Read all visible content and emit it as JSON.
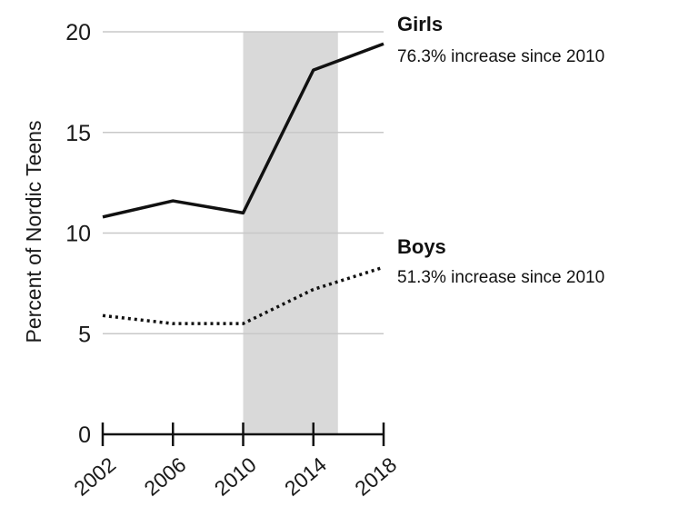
{
  "chart_data": {
    "type": "line",
    "ylabel": "Percent of Nordic Teens",
    "xlabel": "",
    "x": [
      2002,
      2006,
      2010,
      2014,
      2018
    ],
    "xticks": [
      "2002",
      "2006",
      "2010",
      "2014",
      "2018"
    ],
    "yticks": [
      "0",
      "5",
      "10",
      "15",
      "20"
    ],
    "ylim": [
      0,
      20
    ],
    "xlim": [
      2002,
      2018
    ],
    "grid": true,
    "highlight_band": [
      2010,
      2015.4
    ],
    "series": [
      {
        "name": "Girls",
        "style": "solid",
        "annotation": "76.3% increase since 2010",
        "values": [
          10.8,
          11.6,
          11.0,
          18.1,
          19.4
        ]
      },
      {
        "name": "Boys",
        "style": "dotted",
        "annotation": "51.3% increase since 2010",
        "values": [
          5.9,
          5.5,
          5.5,
          7.2,
          8.3
        ]
      }
    ],
    "colors": {
      "line": "#111111",
      "grid": "#c8c8c8",
      "band": "#d9d9d9"
    }
  }
}
